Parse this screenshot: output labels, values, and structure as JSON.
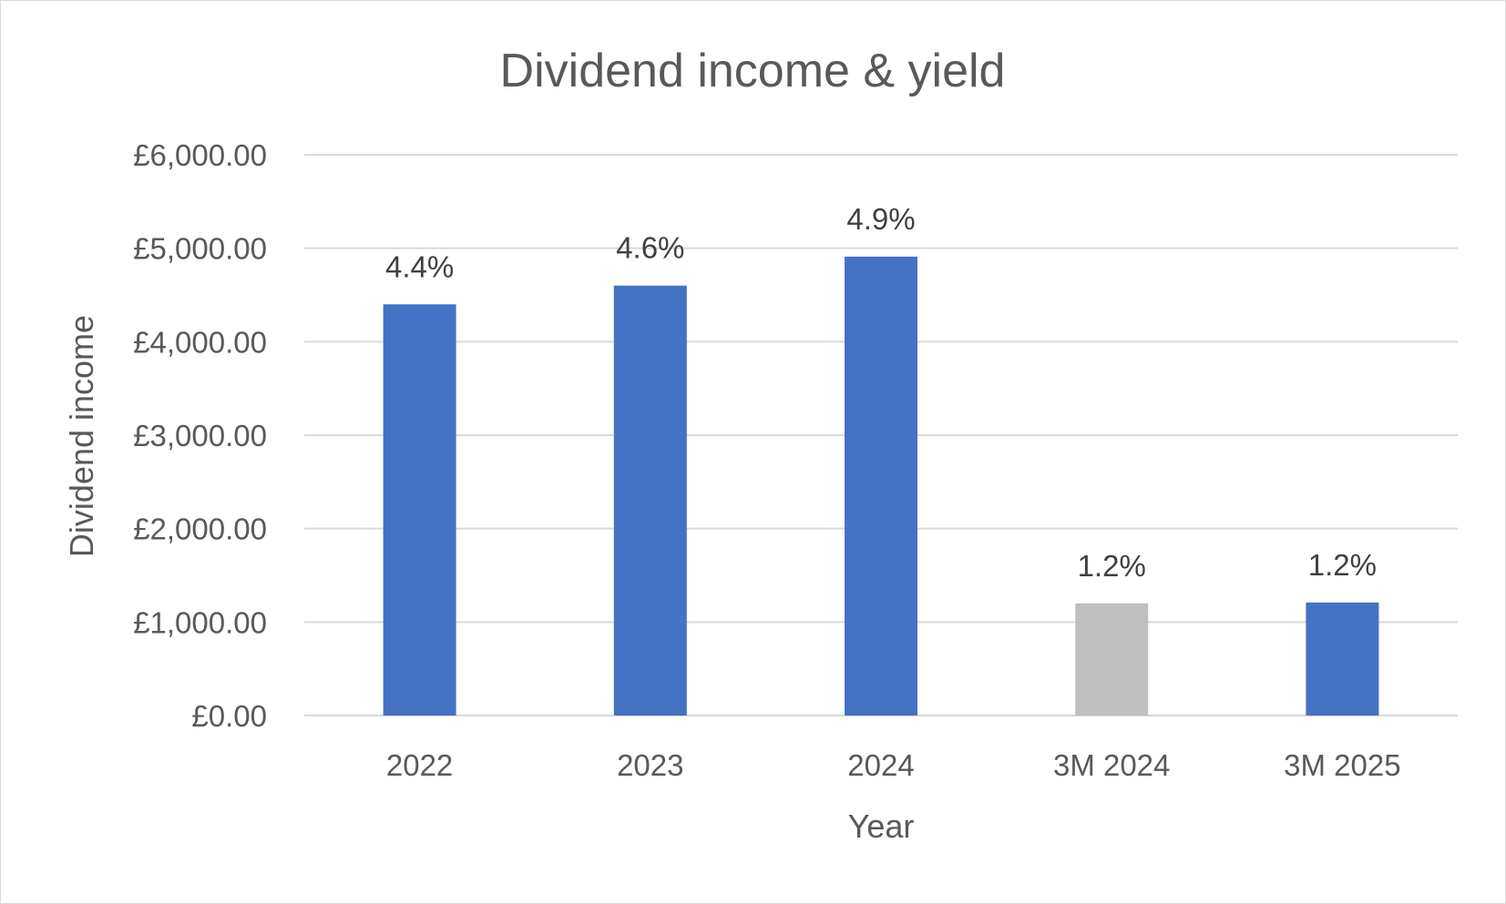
{
  "chart_data": {
    "type": "bar",
    "title": "Dividend income & yield",
    "xlabel": "Year",
    "ylabel": "Dividend income",
    "categories": [
      "2022",
      "2023",
      "2024",
      "3M 2024",
      "3M 2025"
    ],
    "values": [
      4400,
      4600,
      4910,
      1200,
      1210
    ],
    "data_labels": [
      "4.4%",
      "4.6%",
      "4.9%",
      "1.2%",
      "1.2%"
    ],
    "bar_colors": [
      "#4472c4",
      "#4472c4",
      "#4472c4",
      "#bfbfbf",
      "#4472c4"
    ],
    "ylim": [
      0,
      6000
    ],
    "yticks": [
      0,
      1000,
      2000,
      3000,
      4000,
      5000,
      6000
    ],
    "ytick_labels": [
      "£0.00",
      "£1,000.00",
      "£2,000.00",
      "£3,000.00",
      "£4,000.00",
      "£5,000.00",
      "£6,000.00"
    ],
    "grid": true,
    "legend": "none"
  }
}
